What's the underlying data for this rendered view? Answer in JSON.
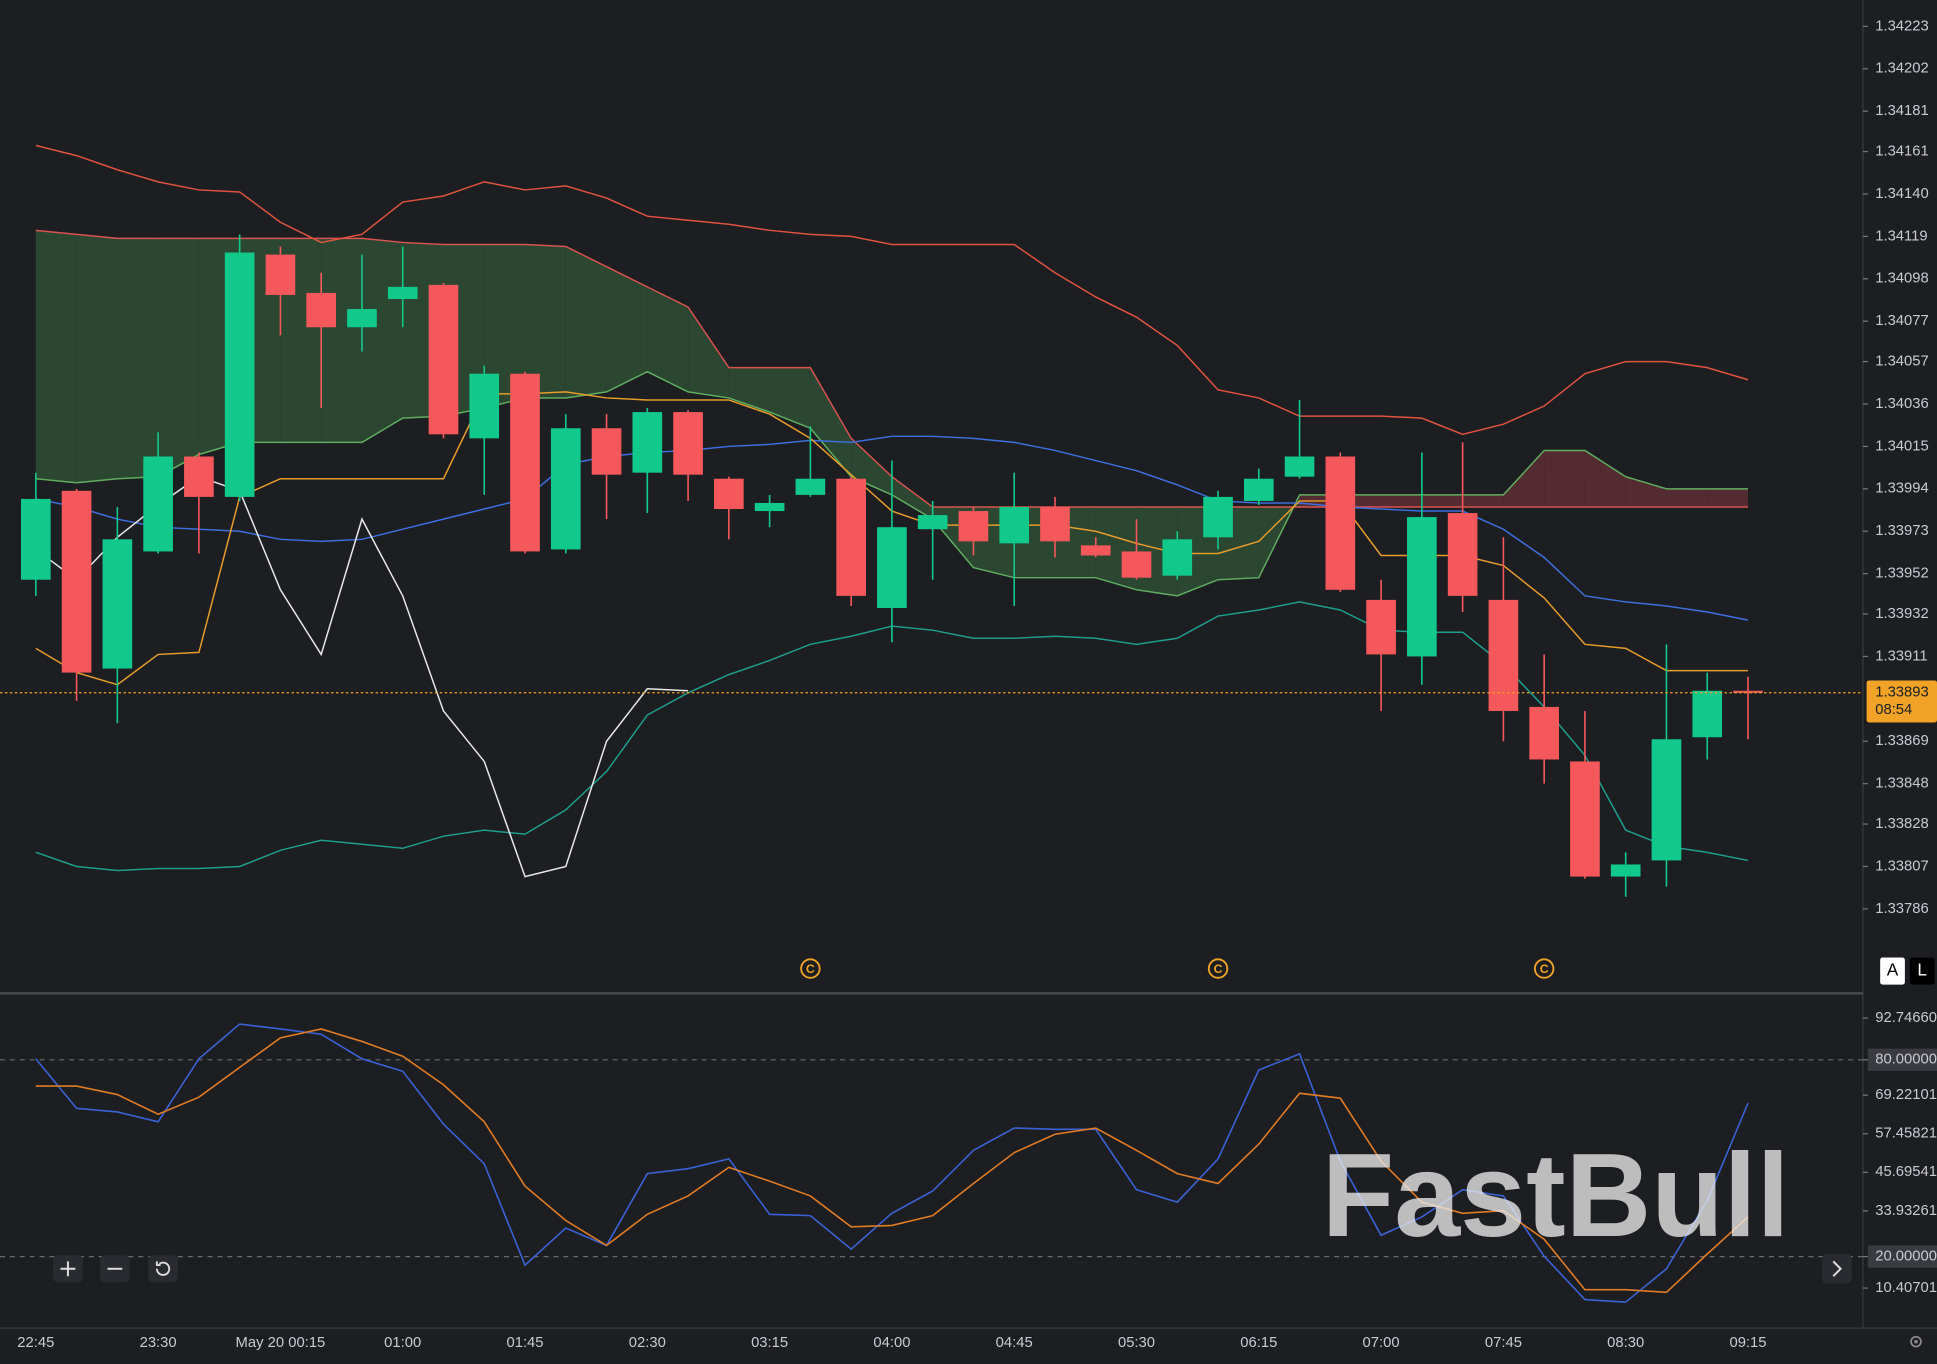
{
  "chart_data": [
    {
      "type": "candlestick",
      "categories": [
        "22:45",
        null,
        null,
        "23:30",
        null,
        null,
        "May 20 00:15",
        null,
        null,
        "01:00",
        null,
        null,
        "01:45",
        null,
        null,
        "02:30",
        null,
        null,
        "03:15",
        null,
        null,
        "04:00",
        null,
        null,
        "04:45",
        null,
        null,
        "05:30",
        null,
        null,
        "06:15",
        null,
        null,
        "07:00",
        null,
        null,
        "07:45",
        null,
        null,
        "08:30",
        null,
        null,
        "09:15"
      ],
      "open": [
        1.33949,
        1.33993,
        1.33905,
        1.33963,
        1.3401,
        1.3399,
        1.3411,
        1.34091,
        1.34074,
        1.34088,
        1.34095,
        1.34019,
        1.34051,
        1.33964,
        1.34024,
        1.34002,
        1.34032,
        1.33999,
        1.33983,
        1.33991,
        1.33999,
        1.33935,
        1.33974,
        1.33983,
        1.33967,
        1.33985,
        1.33966,
        1.33963,
        1.33951,
        1.3397,
        1.33988,
        1.34,
        1.3401,
        1.33939,
        1.33911,
        1.33982,
        1.33939,
        1.33886,
        1.33859,
        1.33802,
        1.3381,
        1.33871,
        1.33894
      ],
      "high": [
        1.34002,
        1.33994,
        1.33985,
        1.34022,
        1.34012,
        1.3412,
        1.34114,
        1.34101,
        1.3411,
        1.34114,
        1.34096,
        1.34055,
        1.34052,
        1.34031,
        1.34031,
        1.34034,
        1.34033,
        1.34,
        1.33991,
        1.34025,
        1.34,
        1.34008,
        1.33988,
        1.33985,
        1.34002,
        1.3399,
        1.3397,
        1.33979,
        1.33973,
        1.33993,
        1.34004,
        1.34038,
        1.34012,
        1.33949,
        1.34012,
        1.34017,
        1.3397,
        1.33912,
        1.33884,
        1.33814,
        1.33917,
        1.33903,
        1.33901
      ],
      "low": [
        1.33941,
        1.33889,
        1.33878,
        1.33962,
        1.33962,
        1.33988,
        1.3407,
        1.34034,
        1.34062,
        1.34074,
        1.34019,
        1.33991,
        1.33962,
        1.33962,
        1.33979,
        1.33982,
        1.33988,
        1.33969,
        1.33975,
        1.3399,
        1.33936,
        1.33918,
        1.33949,
        1.33961,
        1.33936,
        1.3396,
        1.3396,
        1.33949,
        1.33949,
        1.33964,
        1.33986,
        1.33999,
        1.33943,
        1.33884,
        1.33897,
        1.33933,
        1.33869,
        1.33848,
        1.33801,
        1.33792,
        1.33797,
        1.3386,
        1.3387
      ],
      "close": [
        1.33989,
        1.33903,
        1.33969,
        1.3401,
        1.3399,
        1.34111,
        1.3409,
        1.34074,
        1.34083,
        1.34094,
        1.34021,
        1.34051,
        1.33963,
        1.34024,
        1.34001,
        1.34032,
        1.34001,
        1.33984,
        1.33987,
        1.33999,
        1.33941,
        1.33975,
        1.33981,
        1.33968,
        1.33985,
        1.33968,
        1.33961,
        1.3395,
        1.33969,
        1.3399,
        1.33999,
        1.3401,
        1.33944,
        1.33912,
        1.3398,
        1.33941,
        1.33884,
        1.3386,
        1.33802,
        1.33808,
        1.3387,
        1.33894,
        1.33893
      ],
      "up_color": "#12c98c",
      "down_color": "#f5585b",
      "cloud": [
        {
          "color": "#d9534f",
          "values": [
            1.34122,
            1.3412,
            1.34118,
            1.34118,
            1.34118,
            1.34118,
            1.34118,
            1.34118,
            1.34118,
            1.34116,
            1.34115,
            1.34115,
            1.34115,
            1.34114,
            1.34104,
            1.34094,
            1.34084,
            1.34054,
            1.34054,
            1.34054,
            1.34019,
            1.34,
            1.33985,
            1.33985,
            1.33985,
            1.33985,
            1.33985,
            1.33985,
            1.33985,
            1.33985,
            1.33985,
            1.33985,
            1.33985,
            1.33985,
            1.33985,
            1.33985,
            1.33985,
            1.33985,
            1.33985,
            1.33985,
            1.33985,
            1.33985,
            1.33985
          ]
        },
        {
          "color": "#5fae5f",
          "values": [
            1.33999,
            1.33997,
            1.33999,
            1.34,
            1.34011,
            1.34017,
            1.34017,
            1.34017,
            1.34017,
            1.34029,
            1.3403,
            1.34034,
            1.34039,
            1.34039,
            1.34042,
            1.34052,
            1.34042,
            1.34039,
            1.34032,
            1.34024,
            1.34,
            1.33991,
            1.33979,
            1.33955,
            1.3395,
            1.3395,
            1.3395,
            1.33944,
            1.33941,
            1.33949,
            1.3395,
            1.33991,
            1.33991,
            1.33991,
            1.33991,
            1.33991,
            1.33991,
            1.34013,
            1.34013,
            1.34,
            1.33994,
            1.33994,
            1.33994
          ]
        }
      ],
      "cloud_up_color": "#2e4a33",
      "cloud_down_color": "#5a2c32",
      "series": [
        {
          "color": "#e0533f",
          "values": [
            1.34164,
            1.34159,
            1.34152,
            1.34146,
            1.34142,
            1.34141,
            1.34126,
            1.34116,
            1.3412,
            1.34136,
            1.34139,
            1.34146,
            1.34142,
            1.34144,
            1.34138,
            1.34129,
            1.34127,
            1.34125,
            1.34122,
            1.3412,
            1.34119,
            1.34115,
            1.34115,
            1.34115,
            1.34115,
            1.34101,
            1.34089,
            1.34079,
            1.34065,
            1.34043,
            1.34039,
            1.3403,
            1.3403,
            1.3403,
            1.34029,
            1.34021,
            1.34026,
            1.34035,
            1.34051,
            1.34057,
            1.34057,
            1.34054,
            1.34048
          ]
        },
        {
          "color": "#1e9e8c",
          "values": [
            1.33814,
            1.33807,
            1.33805,
            1.33806,
            1.33806,
            1.33807,
            1.33815,
            1.3382,
            1.33818,
            1.33816,
            1.33822,
            1.33825,
            1.33823,
            1.33835,
            1.33854,
            1.33882,
            1.33893,
            1.33902,
            1.33909,
            1.33917,
            1.33921,
            1.33926,
            1.33924,
            1.3392,
            1.3392,
            1.33921,
            1.3392,
            1.33917,
            1.3392,
            1.33931,
            1.33934,
            1.33938,
            1.33934,
            1.33924,
            1.33923,
            1.33923,
            1.33907,
            1.33886,
            1.33862,
            1.33825,
            1.33817,
            1.33814,
            1.3381
          ]
        },
        {
          "color": "#3d6fe0",
          "values": [
            1.33989,
            1.33985,
            1.33979,
            1.33975,
            1.33974,
            1.33973,
            1.33969,
            1.33968,
            1.33969,
            1.33974,
            1.33979,
            1.33984,
            1.33989,
            1.34006,
            1.3401,
            1.34012,
            1.34013,
            1.34015,
            1.34016,
            1.34018,
            1.34017,
            1.3402,
            1.3402,
            1.34019,
            1.34017,
            1.34013,
            1.34008,
            1.34003,
            1.33996,
            1.33988,
            1.33987,
            1.33987,
            1.33985,
            1.33984,
            1.33983,
            1.33983,
            1.33974,
            1.3396,
            1.33941,
            1.33938,
            1.33936,
            1.33933,
            1.33929
          ]
        },
        {
          "color": "#e89c2a",
          "values": [
            1.33915,
            1.33903,
            1.33897,
            1.33912,
            1.33913,
            1.3399,
            1.33999,
            1.33999,
            1.33999,
            1.33999,
            1.33999,
            1.34041,
            1.34041,
            1.34042,
            1.34039,
            1.34038,
            1.34038,
            1.34038,
            1.34031,
            1.34019,
            1.34001,
            1.33983,
            1.33976,
            1.33976,
            1.33976,
            1.33976,
            1.33973,
            1.33967,
            1.33962,
            1.33962,
            1.33968,
            1.33988,
            1.33988,
            1.33961,
            1.33961,
            1.33961,
            1.33956,
            1.3394,
            1.33917,
            1.33915,
            1.33904,
            1.33904,
            1.33904
          ]
        },
        {
          "color": "#e8e8e8",
          "values": [
            1.33964,
            1.33949,
            1.3397,
            1.33986,
            1.34,
            1.33993,
            1.33944,
            1.33912,
            1.33979,
            1.33941,
            1.33884,
            1.33859,
            1.33802,
            1.33807,
            1.33869,
            1.33895,
            1.33894,
            null,
            null,
            null,
            null,
            null,
            null,
            null,
            null,
            null,
            null,
            null,
            null,
            null,
            null,
            null,
            null,
            null,
            null,
            null,
            null,
            null,
            null,
            null,
            null,
            null,
            null
          ]
        }
      ],
      "ylim": [
        1.33765,
        1.34236
      ],
      "yticks": [
        1.34223,
        1.34202,
        1.34181,
        1.34161,
        {
          "value": 1.3414,
          "label": "1.34140"
        },
        1.34119,
        1.34098,
        1.34077,
        1.34057,
        1.34036,
        1.34015,
        1.33994,
        1.33973,
        1.33952,
        1.33932,
        1.33911,
        1.33869,
        1.33848,
        1.33828,
        1.33807,
        1.33786
      ],
      "last_price": 1.33893,
      "countdown": "08:54",
      "last_price_color": "#f0a326",
      "events": [
        "C",
        "C",
        "C"
      ],
      "event_color": "#f0a326",
      "buttons": [
        "A",
        "L"
      ],
      "watermark": "FastBull"
    },
    {
      "type": "line",
      "series": [
        {
          "color": "#3a62d6",
          "values": [
            80.3,
            65.2,
            64.1,
            61.1,
            80.3,
            90.9,
            89.4,
            87.8,
            80.3,
            76.5,
            60.4,
            48.3,
            17.4,
            28.7,
            23.4,
            45.3,
            46.8,
            49.8,
            32.9,
            32.5,
            22.3,
            33.2,
            40.0,
            52.4,
            59.2,
            58.8,
            58.8,
            40.4,
            36.6,
            49.8,
            76.9,
            81.8,
            49.1,
            26.5,
            32.1,
            40.4,
            38.5,
            20.1,
            6.9,
            6.1,
            16.3,
            37.0,
            66.8
          ]
        },
        {
          "color": "#e07b24",
          "values": [
            72.0,
            72.0,
            69.4,
            63.4,
            68.6,
            77.7,
            86.7,
            89.4,
            85.6,
            81.1,
            72.4,
            61.1,
            41.5,
            31.0,
            23.4,
            32.9,
            38.5,
            47.2,
            43.0,
            38.5,
            29.1,
            29.5,
            32.5,
            42.3,
            51.7,
            57.3,
            59.2,
            52.4,
            45.3,
            42.3,
            54.3,
            69.8,
            68.3,
            49.1,
            36.6,
            33.2,
            34.0,
            25.3,
            9.9,
            9.9,
            9.1,
            20.8,
            32.1
          ]
        }
      ],
      "ylim": [
        -1.79,
        99.9
      ],
      "yticks": [
        {
          "value": 92.7466,
          "label": "92.74660"
        },
        {
          "value": 80,
          "label": "80.00000"
        },
        69.22101,
        57.45821,
        45.69541,
        33.93261,
        {
          "value": 20,
          "label": "20.00000"
        },
        10.40701
      ],
      "levels": [
        80,
        20
      ]
    }
  ]
}
